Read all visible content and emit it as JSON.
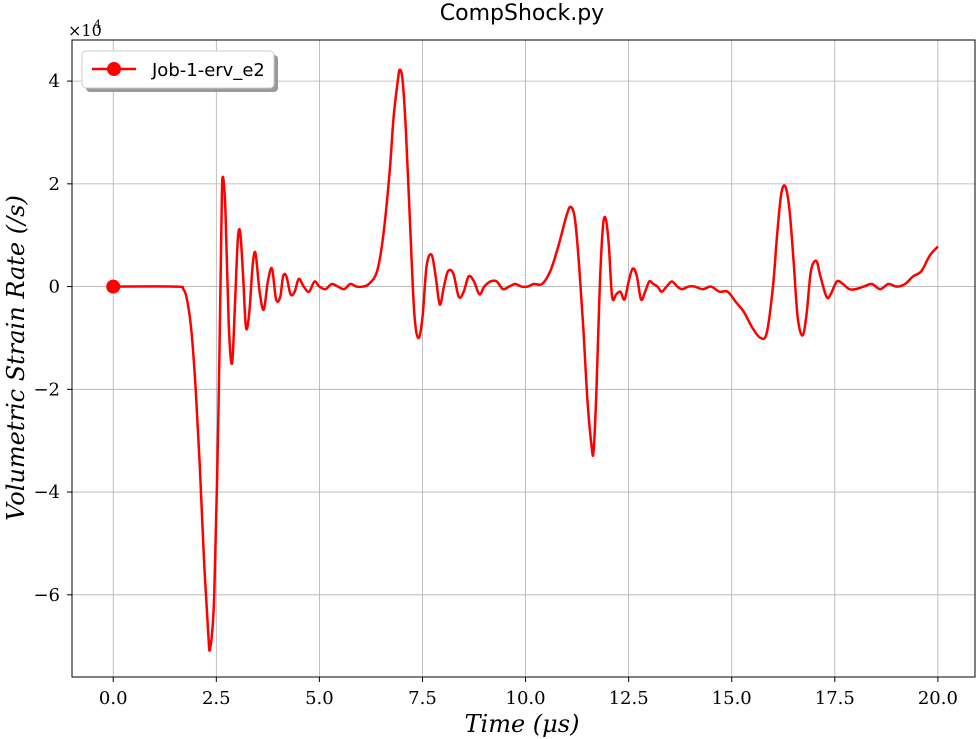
{
  "chart_data": {
    "type": "line",
    "title": "CompShock.py",
    "xlabel": "Time (μs)",
    "ylabel": "Volumetric Strain Rate (/s)",
    "y_multiplier_label": "×10",
    "y_multiplier_exp": "4",
    "xlim": [
      -1.0,
      20.9
    ],
    "ylim": [
      -7.6,
      4.8
    ],
    "x_ticks": [
      0.0,
      2.5,
      5.0,
      7.5,
      10.0,
      12.5,
      15.0,
      17.5,
      20.0
    ],
    "x_tick_labels": [
      "0.0",
      "2.5",
      "5.0",
      "7.5",
      "10.0",
      "12.5",
      "15.0",
      "17.5",
      "20.0"
    ],
    "y_ticks": [
      -6,
      -4,
      -2,
      0,
      2,
      4
    ],
    "y_tick_labels": [
      "−6",
      "−4",
      "−2",
      "0",
      "2",
      "4"
    ],
    "grid": true,
    "legend_position": "top-left",
    "series": [
      {
        "name": "Job-1-erv_e2",
        "color": "#ff0000",
        "marker_at_start": true,
        "x": [
          0.0,
          1.5,
          1.7,
          1.8,
          1.9,
          2.0,
          2.1,
          2.2,
          2.3,
          2.35,
          2.45,
          2.55,
          2.62,
          2.65,
          2.72,
          2.8,
          2.88,
          2.95,
          3.02,
          3.08,
          3.15,
          3.22,
          3.3,
          3.38,
          3.45,
          3.55,
          3.65,
          3.75,
          3.85,
          3.95,
          4.05,
          4.12,
          4.2,
          4.3,
          4.4,
          4.5,
          4.62,
          4.75,
          4.88,
          5.0,
          5.15,
          5.3,
          5.45,
          5.6,
          5.75,
          5.9,
          6.05,
          6.2,
          6.4,
          6.55,
          6.7,
          6.8,
          6.9,
          6.95,
          7.02,
          7.1,
          7.2,
          7.3,
          7.4,
          7.5,
          7.6,
          7.72,
          7.82,
          7.92,
          8.02,
          8.12,
          8.25,
          8.38,
          8.5,
          8.62,
          8.75,
          8.88,
          9.0,
          9.15,
          9.3,
          9.45,
          9.6,
          9.75,
          9.9,
          10.05,
          10.2,
          10.4,
          10.6,
          10.8,
          11.0,
          11.1,
          11.2,
          11.3,
          11.4,
          11.5,
          11.6,
          11.65,
          11.72,
          11.8,
          11.88,
          11.95,
          12.02,
          12.1,
          12.2,
          12.3,
          12.4,
          12.5,
          12.6,
          12.7,
          12.8,
          12.9,
          13.0,
          13.1,
          13.2,
          13.3,
          13.42,
          13.55,
          13.68,
          13.8,
          13.95,
          14.1,
          14.3,
          14.5,
          14.7,
          14.9,
          15.1,
          15.3,
          15.5,
          15.7,
          15.85,
          16.0,
          16.1,
          16.2,
          16.3,
          16.4,
          16.5,
          16.6,
          16.72,
          16.82,
          16.92,
          17.05,
          17.15,
          17.3,
          17.4,
          17.55,
          17.7,
          17.85,
          18.0,
          18.2,
          18.4,
          18.6,
          18.8,
          19.0,
          19.2,
          19.4,
          19.6,
          19.8,
          20.0
        ],
        "y": [
          0.0,
          0.0,
          -0.05,
          -0.3,
          -0.9,
          -2.0,
          -3.5,
          -5.3,
          -6.7,
          -7.05,
          -6.0,
          -2.5,
          1.0,
          2.12,
          1.5,
          -0.7,
          -1.5,
          -0.4,
          0.9,
          1.05,
          0.2,
          -0.8,
          -0.5,
          0.4,
          0.65,
          -0.1,
          -0.45,
          0.1,
          0.35,
          -0.25,
          -0.2,
          0.2,
          0.2,
          -0.15,
          -0.1,
          0.15,
          0.0,
          -0.1,
          0.1,
          0.0,
          -0.05,
          0.05,
          0.0,
          -0.05,
          0.05,
          0.0,
          0.0,
          0.05,
          0.3,
          1.0,
          2.2,
          3.3,
          4.0,
          4.22,
          4.0,
          3.0,
          1.2,
          -0.5,
          -1.0,
          -0.6,
          0.4,
          0.62,
          0.2,
          -0.35,
          0.0,
          0.3,
          0.25,
          -0.2,
          -0.1,
          0.2,
          0.1,
          -0.15,
          0.0,
          0.1,
          0.1,
          -0.05,
          0.0,
          0.05,
          0.0,
          0.0,
          0.05,
          0.05,
          0.3,
          0.8,
          1.4,
          1.55,
          1.3,
          0.4,
          -0.8,
          -2.2,
          -3.1,
          -3.2,
          -2.0,
          0.0,
          1.2,
          1.3,
          0.8,
          -0.2,
          -0.15,
          -0.1,
          -0.25,
          0.1,
          0.35,
          0.2,
          -0.25,
          -0.1,
          0.1,
          0.05,
          0.0,
          -0.1,
          0.0,
          0.1,
          0.0,
          -0.05,
          0.0,
          0.0,
          -0.05,
          0.0,
          -0.1,
          -0.1,
          -0.3,
          -0.5,
          -0.8,
          -1.0,
          -0.9,
          0.0,
          1.0,
          1.8,
          1.95,
          1.5,
          0.5,
          -0.6,
          -0.95,
          -0.5,
          0.3,
          0.5,
          0.2,
          -0.2,
          -0.15,
          0.1,
          0.05,
          -0.05,
          -0.05,
          0.0,
          0.05,
          -0.05,
          0.05,
          0.0,
          0.05,
          0.2,
          0.3,
          0.6,
          0.78
        ]
      }
    ]
  }
}
